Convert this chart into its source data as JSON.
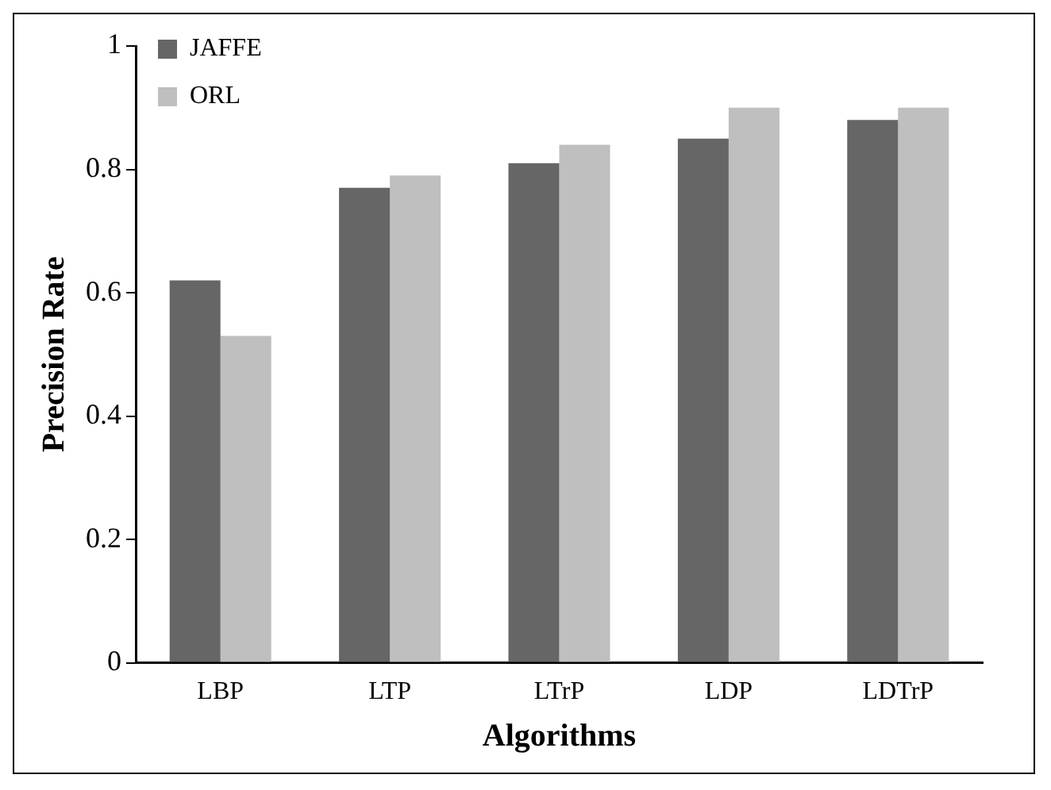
{
  "chart_data": {
    "type": "bar",
    "xlabel": "Algorithms",
    "ylabel": "Precision Rate",
    "categories": [
      "LBP",
      "LTP",
      "LTrP",
      "LDP",
      "LDTrP"
    ],
    "series": [
      {
        "name": "JAFFE",
        "color": "#666666",
        "values": [
          0.62,
          0.77,
          0.81,
          0.85,
          0.88
        ]
      },
      {
        "name": "ORL",
        "color": "#bfbfbf",
        "values": [
          0.53,
          0.79,
          0.84,
          0.9,
          0.9
        ]
      }
    ],
    "ylim": [
      0,
      1
    ],
    "yticks": [
      0,
      0.2,
      0.4,
      0.6,
      0.8,
      1
    ],
    "grid": false,
    "legend": "top left"
  }
}
